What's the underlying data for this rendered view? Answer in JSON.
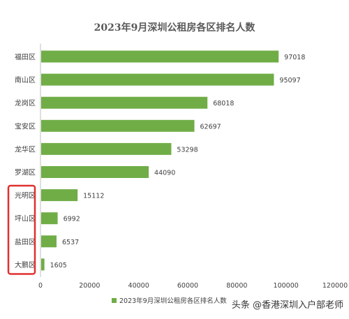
{
  "chart_data": {
    "type": "bar",
    "orientation": "horizontal",
    "title": "2023年9月深圳公租房各区排名人数",
    "categories": [
      "福田区",
      "南山区",
      "龙岗区",
      "宝安区",
      "龙华区",
      "罗湖区",
      "光明区",
      "坪山区",
      "盐田区",
      "大鹏区"
    ],
    "series": [
      {
        "name": "2023年9月深圳公租房各区排名人数",
        "values": [
          97018,
          95097,
          68018,
          62697,
          53298,
          44090,
          15112,
          6992,
          6537,
          1605
        ]
      }
    ],
    "xlim": [
      0,
      120000
    ],
    "xticks": [
      0,
      20000,
      40000,
      60000,
      80000,
      100000,
      120000
    ],
    "xtick_labels": [
      "0",
      "20000",
      "40000",
      "60000",
      "80000",
      "100000",
      "120000"
    ],
    "grid": false,
    "legend_position": "bottom",
    "highlight": {
      "categories": [
        "光明区",
        "坪山区",
        "盐田区",
        "大鹏区"
      ],
      "style": "red rounded box"
    },
    "colors": {
      "bar": "#70AD47",
      "axis": "#BFBFBF",
      "label_text": "#404040",
      "highlight_box": "#E03030"
    }
  },
  "watermark": "头条 @香港深圳入户部老师"
}
